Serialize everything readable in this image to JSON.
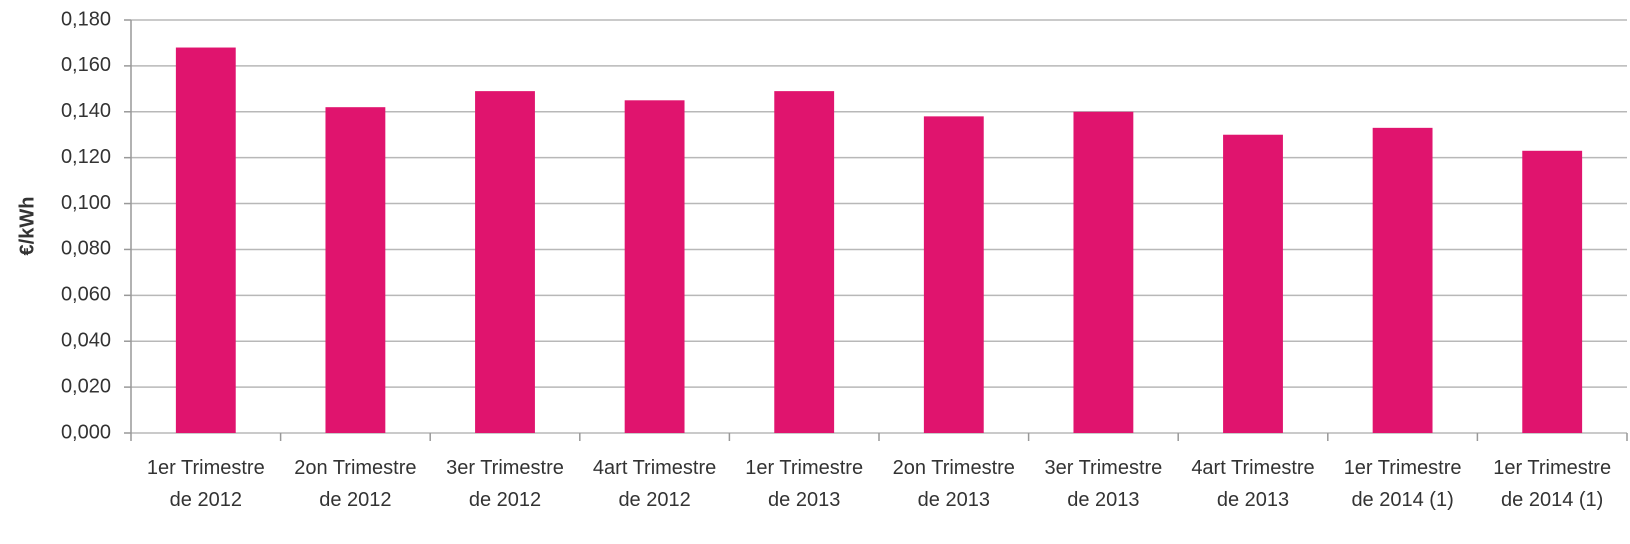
{
  "chart_data": {
    "type": "bar",
    "y_label": "€/kWh",
    "categories": [
      "1er Trimestre de 2012",
      "2on Trimestre de 2012",
      "3er Trimestre de 2012",
      "4art Trimestre de 2012",
      "1er Trimestre de 2013",
      "2on Trimestre de 2013",
      "3er Trimestre de 2013",
      "4art Trimestre de 2013",
      "1er Trimestre de 2014 (1)",
      "1er Trimestre de 2014 (1)"
    ],
    "values": [
      0.168,
      0.142,
      0.149,
      0.145,
      0.149,
      0.138,
      0.14,
      0.13,
      0.133,
      0.123
    ],
    "color": "#e0146e",
    "ylim": [
      0,
      0.18
    ],
    "yticks": [
      {
        "value": 0,
        "label": "0,000"
      },
      {
        "value": 0.02,
        "label": "0,020"
      },
      {
        "value": 0.04,
        "label": "0,040"
      },
      {
        "value": 0.06,
        "label": "0,060"
      },
      {
        "value": 0.08,
        "label": "0,080"
      },
      {
        "value": 0.1,
        "label": "0,100"
      },
      {
        "value": 0.12,
        "label": "0,120"
      },
      {
        "value": 0.14,
        "label": "0,140"
      },
      {
        "value": 0.16,
        "label": "0,160"
      },
      {
        "value": 0.18,
        "label": "0,180"
      }
    ],
    "grid": true
  }
}
